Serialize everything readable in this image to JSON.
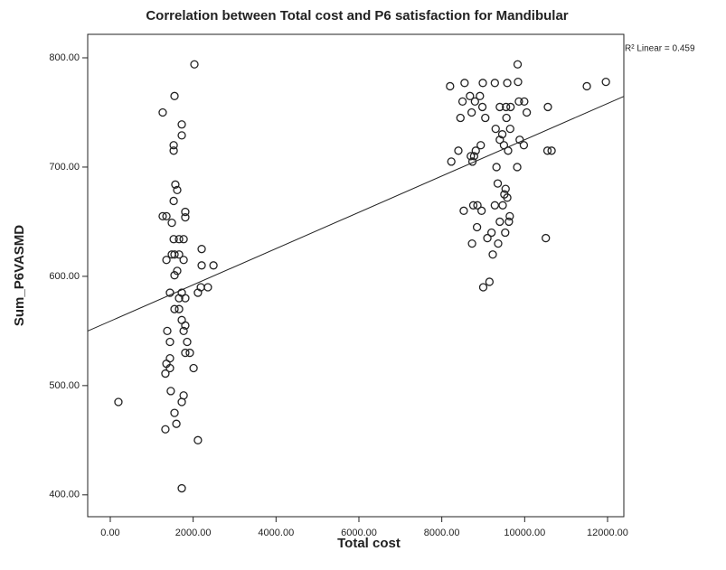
{
  "chart_data": {
    "type": "scatter",
    "title": "Correlation between Total cost and P6 satisfaction for Mandibular",
    "x_label": "Total cost",
    "y_label": "Sum_P6VASMD",
    "annotation": "R² Linear = 0.459",
    "x": [
      196,
      2030,
      1265,
      1550,
      1725,
      1725,
      1530,
      1530,
      1570,
      1615,
      1530,
      1810,
      1810,
      1265,
      1355,
      1485,
      1770,
      1660,
      1530,
      2205,
      1485,
      1550,
      1355,
      1660,
      1770,
      2205,
      2490,
      1615,
      1550,
      1440,
      1725,
      1810,
      1660,
      2115,
      2355,
      2185,
      1550,
      1660,
      1725,
      1810,
      1375,
      1770,
      1440,
      1855,
      1920,
      1810,
      1440,
      1355,
      1440,
      1330,
      2010,
      1460,
      1770,
      1725,
      1550,
      1595,
      1330,
      2115,
      1725,
      8200,
      8550,
      8990,
      9280,
      9580,
      9830,
      9840,
      9860,
      9990,
      10050,
      8680,
      8800,
      8920,
      8500,
      9050,
      8980,
      8720,
      9400,
      9550,
      9660,
      9560,
      9300,
      9400,
      9460,
      9500,
      9650,
      9880,
      9980,
      10550,
      10650,
      10560,
      11500,
      11960,
      8450,
      8400,
      8230,
      8700,
      8780,
      8820,
      8740,
      8940,
      9320,
      9600,
      9820,
      9350,
      9540,
      9510,
      9580,
      9470,
      9620,
      9400,
      9640,
      9530,
      9360,
      9200,
      9100,
      8860,
      8760,
      8960,
      8530,
      8730,
      9230,
      9000,
      9150,
      10510,
      8850,
      9280
    ],
    "values": [
      485,
      794,
      750,
      765,
      739,
      729,
      720,
      715,
      684,
      679,
      669,
      659,
      654,
      655,
      655,
      649,
      634,
      634,
      634,
      625,
      620,
      620,
      615,
      620,
      615,
      610,
      610,
      605,
      601,
      585,
      585,
      580,
      580,
      585,
      590,
      590,
      570,
      570,
      560,
      555,
      550,
      550,
      540,
      540,
      530,
      530,
      525,
      520,
      516,
      511,
      516,
      495,
      491,
      485,
      475,
      465,
      460,
      450,
      406,
      774,
      777,
      777,
      777,
      777,
      794,
      778,
      760,
      760,
      750,
      765,
      760,
      765,
      760,
      745,
      755,
      750,
      755,
      755,
      755,
      745,
      735,
      725,
      730,
      720,
      735,
      725,
      720,
      715,
      715,
      755,
      774,
      778,
      745,
      715,
      705,
      710,
      710,
      715,
      705,
      720,
      700,
      715,
      700,
      685,
      680,
      675,
      672,
      665,
      650,
      650,
      655,
      640,
      630,
      640,
      635,
      665,
      665,
      660,
      660,
      630,
      620,
      590,
      595,
      635,
      645,
      665
    ],
    "color": "#222222",
    "fit": {
      "intercept": 559,
      "slope": 0.0166
    },
    "xlim": [
      -545,
      12393
    ],
    "ylim": [
      380,
      821.5
    ],
    "xticks": [
      {
        "value": 0,
        "label": "0.00"
      },
      {
        "value": 2000,
        "label": "2000.00"
      },
      {
        "value": 4000,
        "label": "4000.00"
      },
      {
        "value": 6000,
        "label": "6000.00"
      },
      {
        "value": 8000,
        "label": "8000.00"
      },
      {
        "value": 10000,
        "label": "10000.00"
      },
      {
        "value": 12000,
        "label": "12000.00"
      }
    ],
    "yticks": [
      {
        "value": 400,
        "label": "400.00"
      },
      {
        "value": 500,
        "label": "500.00"
      },
      {
        "value": 600,
        "label": "600.00"
      },
      {
        "value": 700,
        "label": "700.00"
      },
      {
        "value": 800,
        "label": "800.00"
      }
    ]
  }
}
